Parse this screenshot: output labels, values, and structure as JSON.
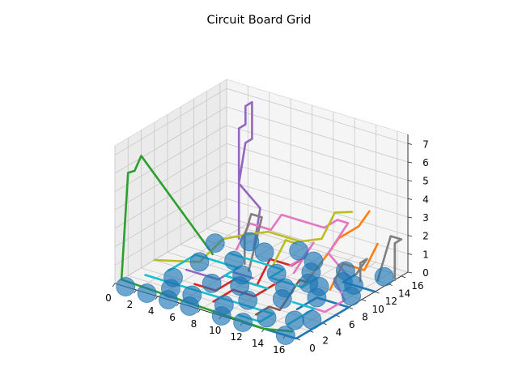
{
  "chart_data": {
    "type": "3d-line-scatter",
    "title": "Circuit Board Grid",
    "xlabel": "",
    "ylabel": "",
    "zlabel": "",
    "xlim": [
      0,
      17
    ],
    "ylim": [
      0,
      17
    ],
    "zlim": [
      0,
      7.5
    ],
    "x_ticks": [
      "0",
      "2",
      "4",
      "6",
      "8",
      "10",
      "12",
      "14",
      "16"
    ],
    "y_ticks": [
      "0",
      "2",
      "4",
      "6",
      "8",
      "10",
      "12",
      "14",
      "16"
    ],
    "z_ticks": [
      "0",
      "1",
      "2",
      "3",
      "4",
      "5",
      "6",
      "7"
    ],
    "grid": true,
    "nodes": {
      "color": "#1f77b4",
      "points": [
        [
          16,
          0,
          0
        ],
        [
          16,
          4,
          0
        ],
        [
          15,
          3,
          0
        ],
        [
          13,
          2,
          0
        ],
        [
          12,
          0,
          0
        ],
        [
          10,
          0,
          0
        ],
        [
          9,
          2,
          0
        ],
        [
          7,
          0,
          0
        ],
        [
          6,
          2,
          0
        ],
        [
          5,
          0,
          0
        ],
        [
          4,
          2,
          0
        ],
        [
          3,
          0,
          0
        ],
        [
          1,
          0,
          0
        ],
        [
          3,
          4,
          0
        ],
        [
          6,
          5,
          0
        ],
        [
          8,
          6,
          0
        ],
        [
          10,
          4,
          0
        ],
        [
          12,
          6,
          0
        ],
        [
          14,
          8,
          0
        ],
        [
          16,
          10,
          0
        ],
        [
          15,
          12,
          0
        ],
        [
          16,
          15,
          0
        ],
        [
          13,
          14,
          0
        ],
        [
          11,
          12,
          0
        ],
        [
          9,
          10,
          0
        ],
        [
          7,
          8,
          0
        ],
        [
          5,
          10,
          0
        ],
        [
          3,
          8,
          0
        ],
        [
          6,
          13,
          0
        ],
        [
          8,
          15,
          0
        ],
        [
          10,
          14,
          0
        ],
        [
          12,
          10,
          0
        ],
        [
          14,
          12,
          0
        ],
        [
          4,
          14,
          0
        ],
        [
          2,
          12,
          0
        ],
        [
          11,
          8,
          0
        ],
        [
          13,
          10,
          0
        ]
      ]
    },
    "series": [
      {
        "color": "#1f77b4",
        "points": [
          [
            12,
            0,
            0
          ],
          [
            17,
            0,
            0
          ],
          [
            17,
            8,
            0
          ],
          [
            14,
            8,
            0
          ],
          [
            14,
            5,
            0
          ]
        ]
      },
      {
        "color": "#1f77b4",
        "points": [
          [
            17,
            12,
            0
          ],
          [
            14,
            12,
            0
          ],
          [
            14,
            14,
            0
          ]
        ]
      },
      {
        "color": "#ff7f0e",
        "points": [
          [
            10,
            6,
            0
          ],
          [
            10,
            9,
            0
          ],
          [
            12,
            9,
            0
          ],
          [
            12,
            13,
            1
          ],
          [
            13,
            13,
            2
          ],
          [
            13,
            16,
            2
          ],
          [
            14,
            16,
            3
          ]
        ]
      },
      {
        "color": "#ff7f0e",
        "points": [
          [
            14,
            10,
            0
          ],
          [
            14,
            12,
            1
          ],
          [
            16,
            12,
            1
          ],
          [
            16,
            14,
            2
          ]
        ]
      },
      {
        "color": "#2ca02c",
        "points": [
          [
            0,
            1,
            0
          ],
          [
            14,
            0,
            0
          ],
          [
            16,
            1,
            0
          ]
        ]
      },
      {
        "color": "#2ca02c",
        "points": [
          [
            0,
            1,
            0
          ],
          [
            0,
            2,
            5.6
          ],
          [
            0,
            3,
            5.5
          ],
          [
            0,
            4,
            6.1
          ],
          [
            3,
            10,
            0
          ]
        ]
      },
      {
        "color": "#d62728",
        "points": [
          [
            5,
            4,
            0
          ],
          [
            7,
            4,
            0
          ],
          [
            7,
            7,
            0
          ],
          [
            9,
            7,
            0
          ],
          [
            9,
            9,
            1
          ],
          [
            11,
            9,
            1
          ],
          [
            11,
            11,
            1
          ]
        ]
      },
      {
        "color": "#d62728",
        "points": [
          [
            8,
            2,
            0
          ],
          [
            8,
            5,
            0
          ],
          [
            10,
            5,
            0
          ],
          [
            10,
            8,
            0
          ]
        ]
      },
      {
        "color": "#9467bd",
        "points": [
          [
            3,
            14,
            0
          ],
          [
            3,
            14,
            6
          ],
          [
            3,
            15,
            6
          ],
          [
            3,
            15,
            7
          ],
          [
            3,
            16,
            7
          ],
          [
            3,
            16,
            5
          ],
          [
            3,
            15,
            5
          ],
          [
            3,
            14,
            3
          ],
          [
            5,
            14,
            2
          ],
          [
            5,
            13,
            0
          ]
        ]
      },
      {
        "color": "#9467bd",
        "points": [
          [
            3,
            6,
            0
          ],
          [
            6,
            6,
            0
          ],
          [
            6,
            8,
            0
          ],
          [
            8,
            8,
            0
          ]
        ]
      },
      {
        "color": "#8c564b",
        "points": [
          [
            12,
            2,
            0
          ],
          [
            12,
            4,
            0
          ],
          [
            13,
            4,
            0
          ],
          [
            13,
            7,
            1
          ],
          [
            14,
            7,
            1
          ]
        ]
      },
      {
        "color": "#e377c2",
        "points": [
          [
            4,
            12,
            0
          ],
          [
            4,
            14,
            1
          ],
          [
            6,
            14,
            1
          ],
          [
            7,
            14,
            2
          ],
          [
            11,
            14,
            2
          ],
          [
            11,
            16,
            2
          ],
          [
            12,
            16,
            2
          ],
          [
            12,
            13,
            1
          ],
          [
            14,
            13,
            0
          ]
        ]
      },
      {
        "color": "#e377c2",
        "points": [
          [
            9,
            12,
            0
          ],
          [
            9,
            14,
            0
          ],
          [
            10,
            14,
            1
          ],
          [
            10,
            11,
            0
          ]
        ]
      },
      {
        "color": "#e377c2",
        "points": [
          [
            14,
            6,
            0
          ],
          [
            16,
            6,
            0
          ],
          [
            16,
            9,
            0
          ],
          [
            15,
            9,
            1
          ]
        ]
      },
      {
        "color": "#7f7f7f",
        "points": [
          [
            6,
            10,
            0
          ],
          [
            6,
            10,
            1.5
          ],
          [
            6,
            11,
            2.5
          ],
          [
            7,
            11,
            2.5
          ],
          [
            7,
            9,
            0
          ]
        ]
      },
      {
        "color": "#7f7f7f",
        "points": [
          [
            17,
            15,
            0
          ],
          [
            17,
            15,
            2
          ],
          [
            17,
            16,
            2
          ],
          [
            16,
            16,
            2
          ],
          [
            16,
            14,
            0
          ]
        ]
      },
      {
        "color": "#7f7f7f",
        "points": [
          [
            15,
            13,
            0
          ],
          [
            15,
            13,
            1
          ],
          [
            15,
            14,
            1
          ],
          [
            14,
            14,
            0
          ]
        ]
      },
      {
        "color": "#bcbd22",
        "points": [
          [
            0,
            6,
            0
          ],
          [
            3,
            8,
            0
          ],
          [
            4,
            10,
            1
          ],
          [
            5,
            12,
            1
          ],
          [
            7,
            12,
            1.5
          ],
          [
            10,
            12,
            1.5
          ],
          [
            12,
            12,
            2
          ],
          [
            12,
            14,
            3
          ],
          [
            13,
            15,
            3
          ]
        ]
      },
      {
        "color": "#bcbd22",
        "points": [
          [
            8,
            11,
            0
          ],
          [
            8,
            13,
            1
          ],
          [
            9,
            13,
            1
          ]
        ]
      },
      {
        "color": "#17becf",
        "points": [
          [
            1,
            3,
            0
          ],
          [
            13,
            3,
            0
          ],
          [
            13,
            1,
            0
          ],
          [
            11,
            1,
            0
          ]
        ]
      },
      {
        "color": "#17becf",
        "points": [
          [
            2,
            5,
            0
          ],
          [
            2,
            9,
            0
          ],
          [
            6,
            9,
            0
          ],
          [
            6,
            7,
            0
          ],
          [
            10,
            7,
            0
          ]
        ]
      },
      {
        "color": "#17becf",
        "points": [
          [
            4,
            11,
            0
          ],
          [
            9,
            11,
            0
          ],
          [
            9,
            9,
            0
          ],
          [
            12,
            9,
            0
          ],
          [
            12,
            11,
            0
          ]
        ]
      },
      {
        "color": "#17becf",
        "points": [
          [
            15,
            2,
            0
          ],
          [
            15,
            6,
            0
          ],
          [
            13,
            6,
            0
          ]
        ]
      }
    ]
  }
}
